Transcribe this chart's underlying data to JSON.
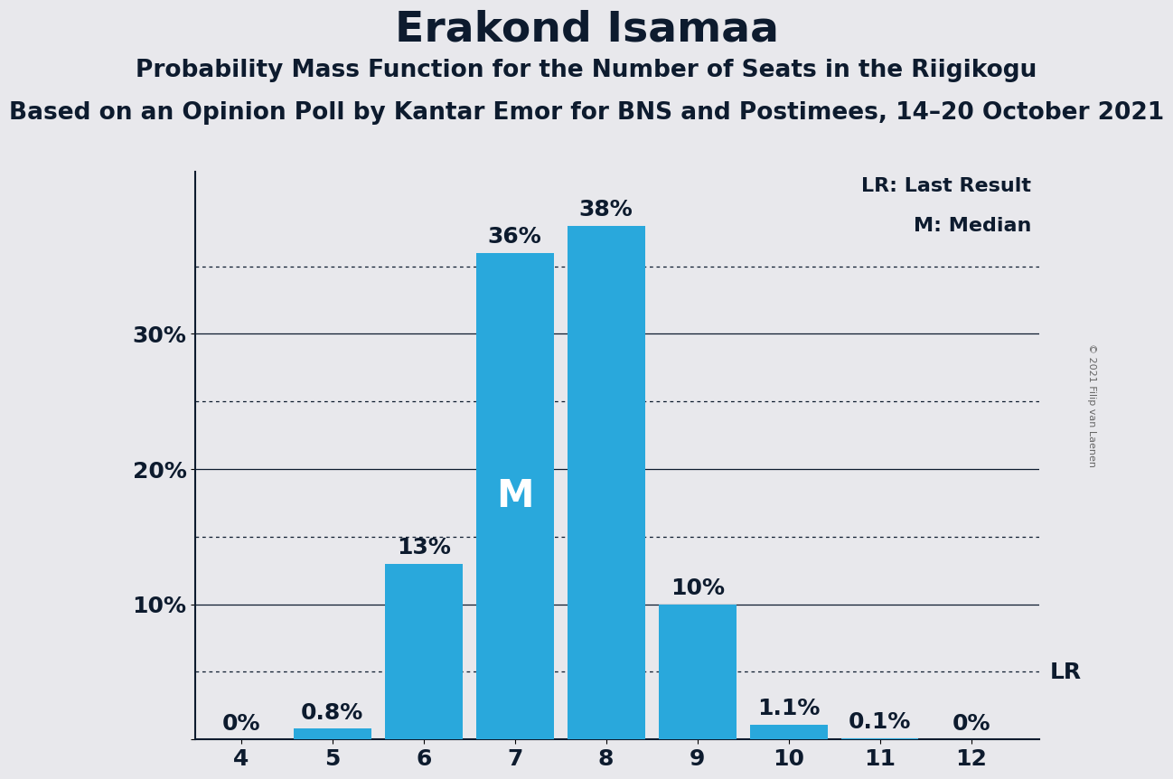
{
  "title": "Erakond Isamaa",
  "subtitle1": "Probability Mass Function for the Number of Seats in the Riigikogu",
  "subtitle2": "Based on an Opinion Poll by Kantar Emor for BNS and Postimees, 14–20 October 2021",
  "copyright": "© 2021 Filip van Laenen",
  "categories": [
    4,
    5,
    6,
    7,
    8,
    9,
    10,
    11,
    12
  ],
  "values": [
    0.0,
    0.8,
    13.0,
    36.0,
    38.0,
    10.0,
    1.1,
    0.1,
    0.0
  ],
  "bar_labels": [
    "0%",
    "0.8%",
    "13%",
    "36%",
    "38%",
    "10%",
    "1.1%",
    "0.1%",
    "0%"
  ],
  "bar_color": "#29A8DC",
  "background_color": "#E8E8EC",
  "median_seat": 7,
  "median_label": "M",
  "lr_value": 5.0,
  "lr_label": "LR",
  "legend_lr": "LR: Last Result",
  "legend_m": "M: Median",
  "ylim": [
    0,
    42
  ],
  "yticks": [
    0,
    10,
    20,
    30
  ],
  "ytick_labels": [
    "",
    "10%",
    "20%",
    "30%"
  ],
  "solid_lines": [
    10,
    20,
    30
  ],
  "dotted_lines": [
    5,
    15,
    25,
    35
  ],
  "title_fontsize": 34,
  "subtitle1_fontsize": 19,
  "subtitle2_fontsize": 19,
  "tick_fontsize": 18,
  "bar_label_fontsize": 18,
  "legend_fontsize": 16,
  "median_fontsize": 30,
  "lr_fontsize": 18
}
